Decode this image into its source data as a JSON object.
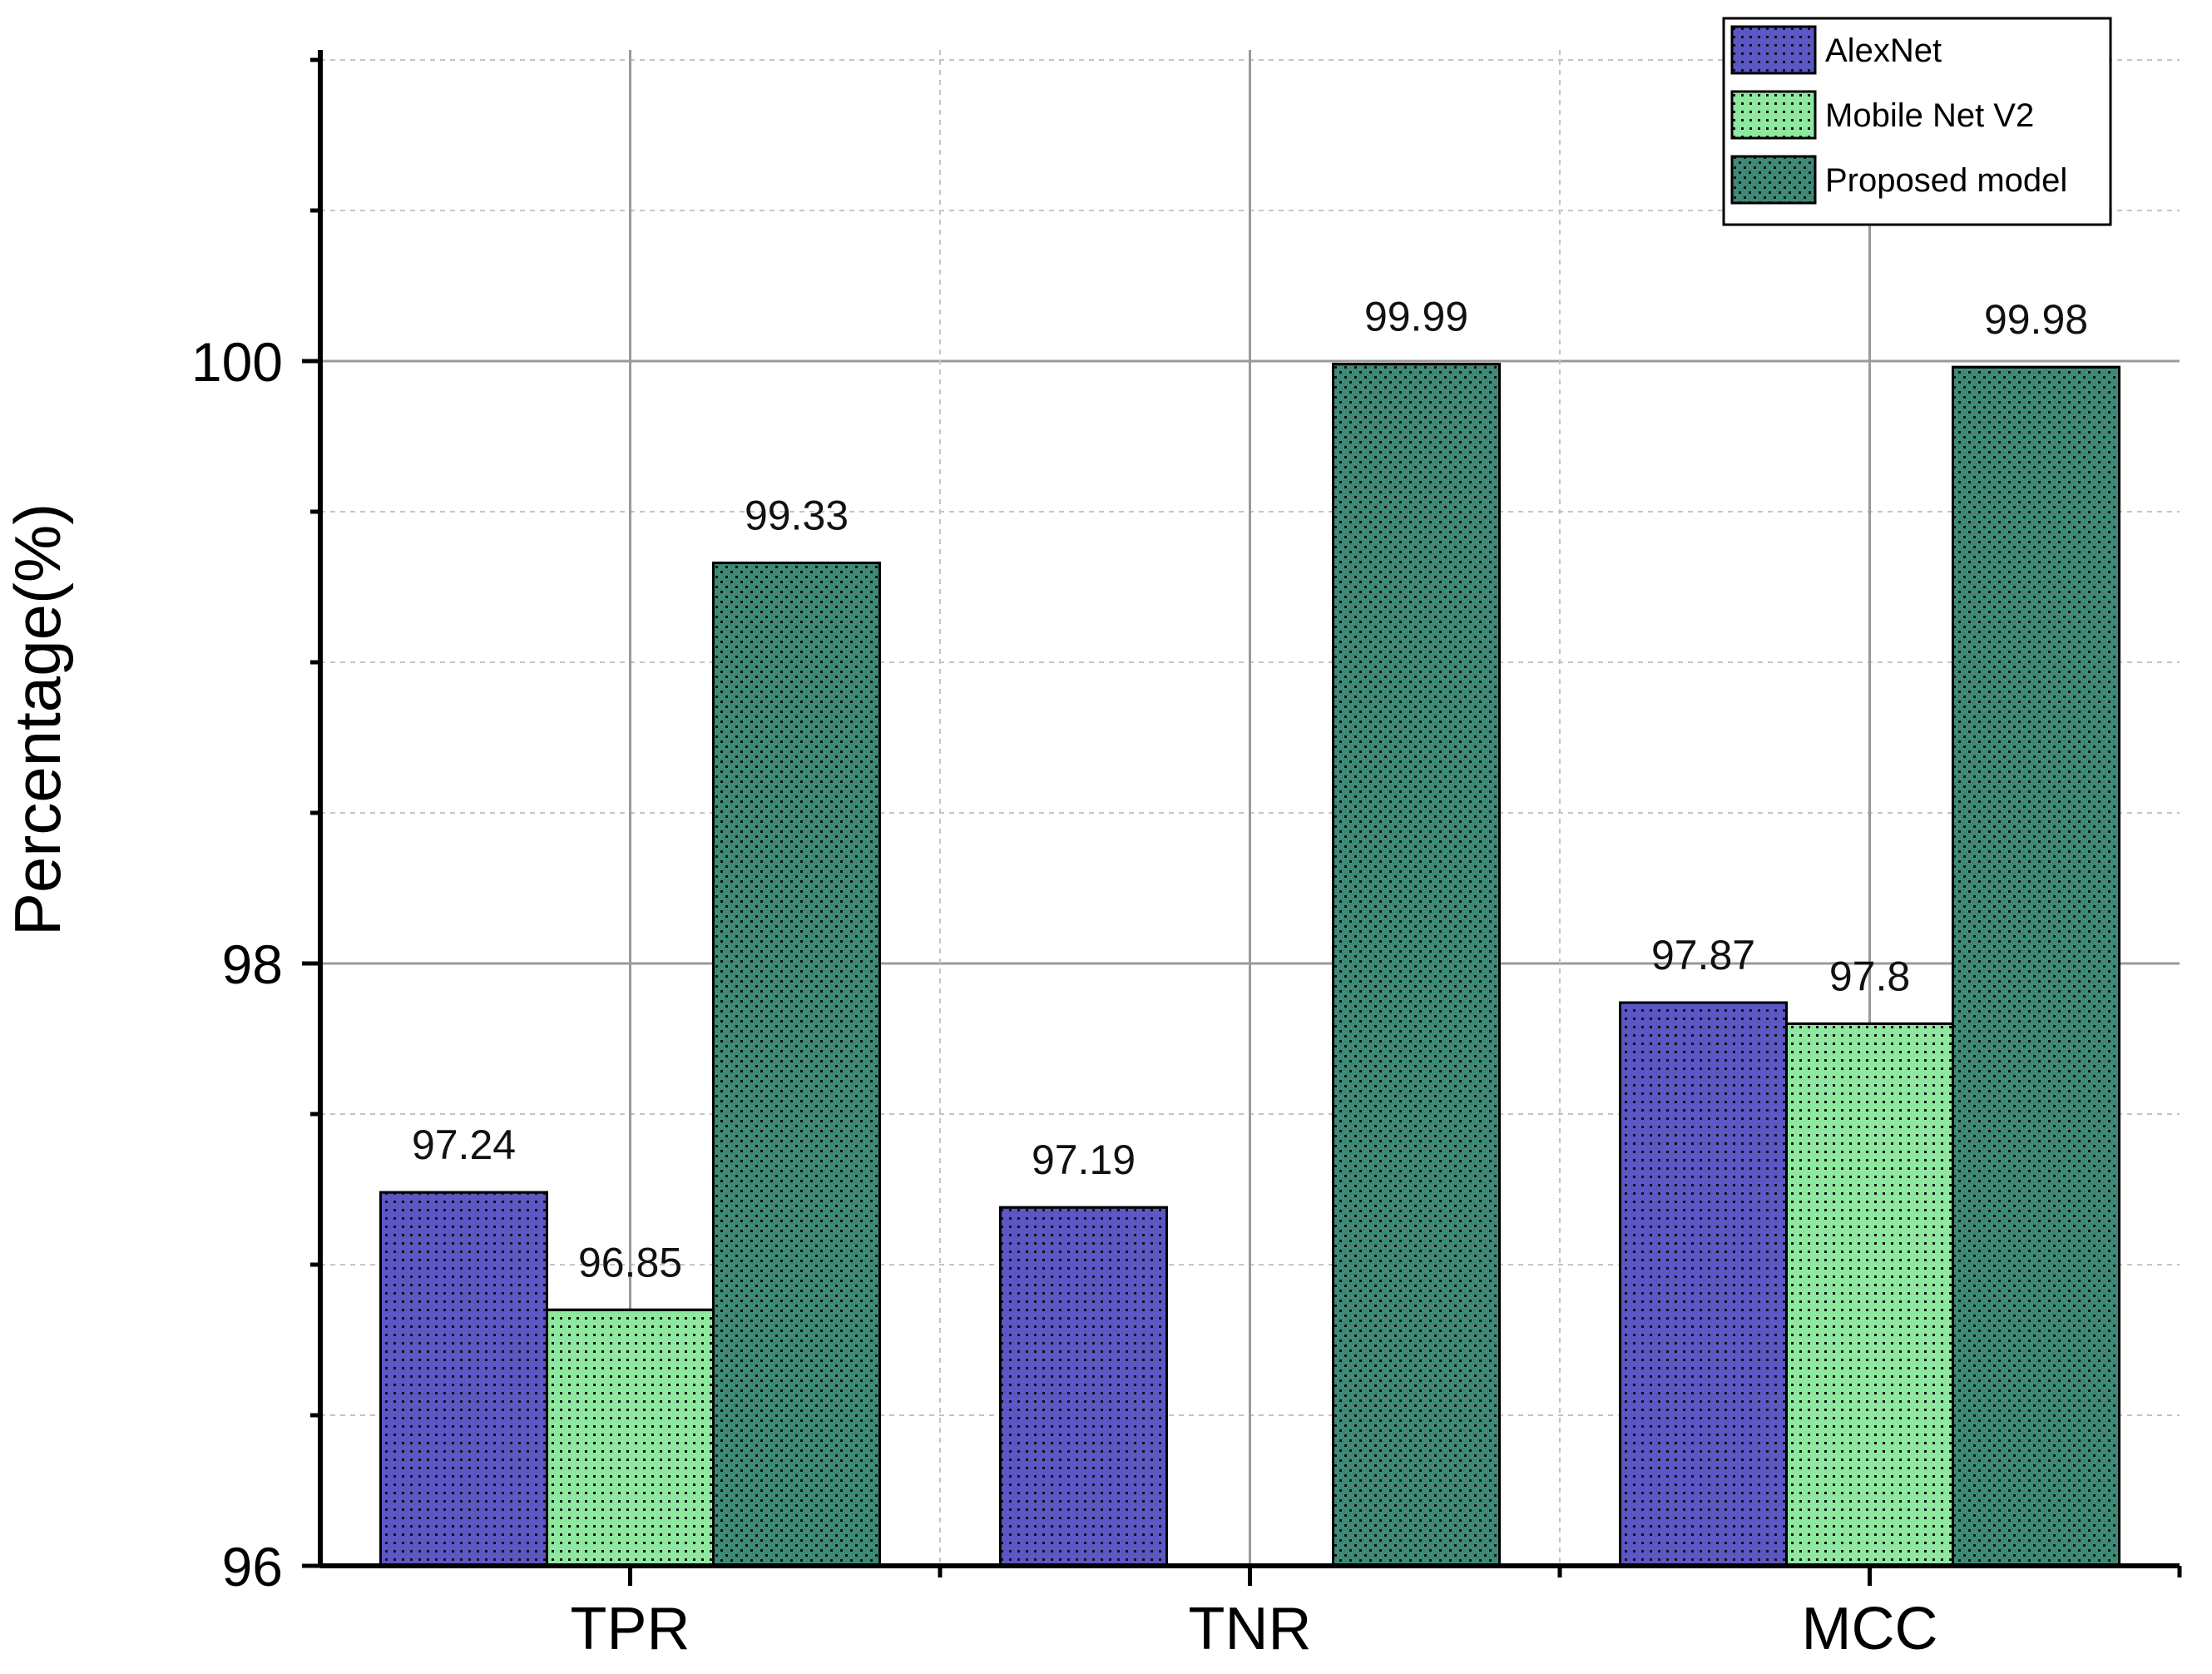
{
  "chart_data": {
    "type": "bar",
    "title": "",
    "xlabel": "",
    "ylabel": "Percentage(%)",
    "ylim": [
      96,
      101
    ],
    "yticks": [
      "96",
      "98",
      "100"
    ],
    "grid": true,
    "legend_position": "top-right",
    "categories": [
      "TPR",
      "TNR",
      "MCC"
    ],
    "series": [
      {
        "name": "AlexNet",
        "color": "#5b57c4",
        "pattern": "dots",
        "values": [
          97.24,
          97.19,
          97.87
        ],
        "labels": [
          "97.24",
          "97.19",
          "97.87"
        ]
      },
      {
        "name": "Mobile Net V2",
        "color": "#8fe8a0",
        "pattern": "dots",
        "values": [
          96.85,
          null,
          97.8
        ],
        "labels": [
          "96.85",
          "",
          "97.8"
        ]
      },
      {
        "name": "Proposed model",
        "color": "#3e8a76",
        "pattern": "crosshatch",
        "values": [
          99.33,
          99.99,
          99.98
        ],
        "labels": [
          "99.33",
          "99.99",
          "99.98"
        ]
      }
    ]
  }
}
